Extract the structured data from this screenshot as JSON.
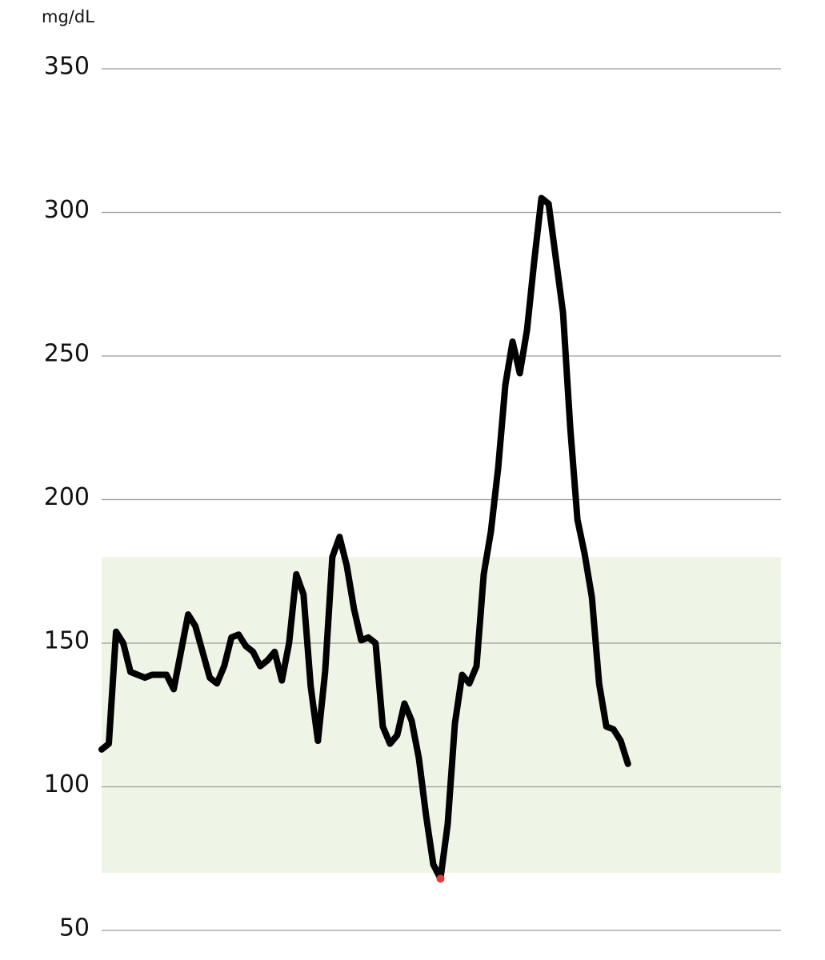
{
  "chart_data": {
    "type": "line",
    "y_label": "mg/dL",
    "values": [
      113,
      115,
      154,
      150,
      140,
      139,
      138,
      139,
      139,
      139,
      134,
      147,
      160,
      156,
      147,
      138,
      136,
      142,
      152,
      153,
      149,
      147,
      142,
      144,
      147,
      137,
      150,
      174,
      167,
      135,
      116,
      140,
      180,
      187,
      177,
      162,
      151,
      152,
      150,
      121,
      115,
      118,
      129,
      123,
      110,
      90,
      73,
      68,
      87,
      122,
      139,
      136,
      142,
      174,
      189,
      211,
      240,
      255,
      244,
      259,
      283,
      305,
      303,
      284,
      265,
      225,
      193,
      181,
      166,
      136,
      121,
      120,
      116,
      108
    ],
    "color": "#000000",
    "low_color": "#e03c3c",
    "target_range": [
      70,
      180
    ],
    "band_color": "#eef5e6",
    "ylim": [
      50,
      350
    ],
    "yticks": [
      50,
      100,
      150,
      200,
      250,
      300,
      350
    ],
    "grid": true
  }
}
